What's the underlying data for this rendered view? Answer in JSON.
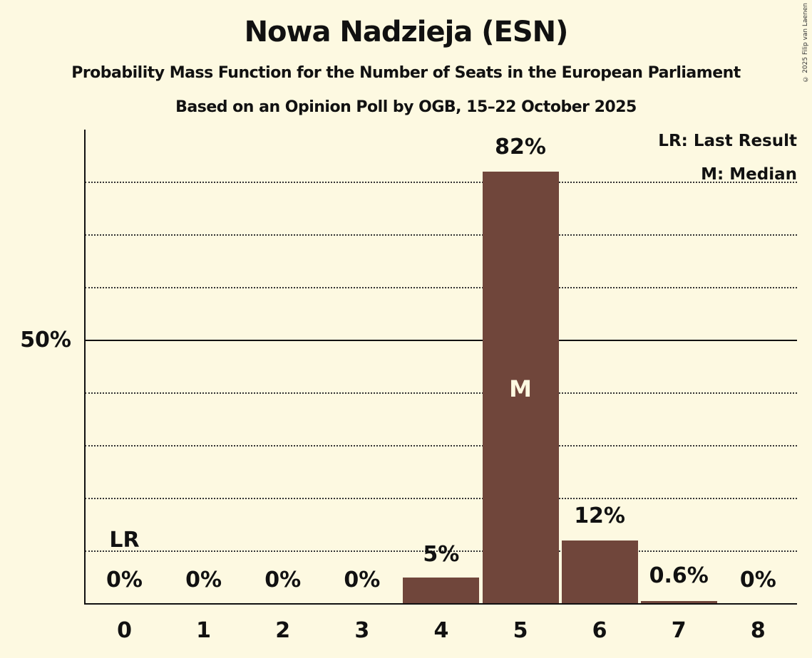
{
  "header": {
    "title": "Nowa Nadzieja (ESN)",
    "subtitle": "Probability Mass Function for the Number of Seats in the European Parliament",
    "source": "Based on an Opinion Poll by OGB, 15–22 October 2025",
    "credit": "© 2025 Filip van Laenen"
  },
  "legend": {
    "lr": "LR: Last Result",
    "m": "M: Median"
  },
  "axis": {
    "y_tick_label": "50%"
  },
  "markers": {
    "last_result_label": "LR",
    "median_label": "M"
  },
  "colors": {
    "background": "#fdf9e1",
    "bar": "#70463b",
    "text": "#111111"
  },
  "chart_data": {
    "type": "bar",
    "title": "Nowa Nadzieja (ESN)",
    "subtitle": "Probability Mass Function for the Number of Seats in the European Parliament",
    "caption": "Based on an Opinion Poll by OGB, 15–22 October 2025",
    "xlabel": "",
    "ylabel": "",
    "categories": [
      "0",
      "1",
      "2",
      "3",
      "4",
      "5",
      "6",
      "7",
      "8"
    ],
    "values": [
      0,
      0,
      0,
      0,
      5,
      82,
      12,
      0.6,
      0
    ],
    "value_labels": [
      "0%",
      "0%",
      "0%",
      "0%",
      "5%",
      "82%",
      "12%",
      "0.6%",
      "0%"
    ],
    "ylim": [
      0,
      90
    ],
    "y_ticks_labeled": [
      "50%"
    ],
    "gridlines": [
      10,
      20,
      30,
      40,
      50,
      60,
      70,
      80
    ],
    "grid": true,
    "last_result": 0,
    "median": 5,
    "legend": [
      "LR: Last Result",
      "M: Median"
    ],
    "legend_position": "top-right"
  }
}
